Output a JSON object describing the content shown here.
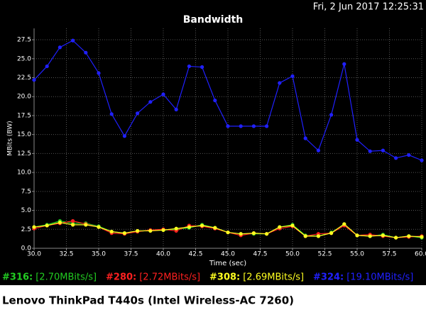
{
  "chart_data": {
    "type": "line",
    "title": "Bandwidth",
    "timestamp": "Fri, 2 Jun 2017 12:25:31",
    "xlabel": "Time (sec)",
    "ylabel": "MBits (BW)",
    "footer": "Lenovo ThinkPad T440s (Intel Wireless-AC 7260)",
    "x": [
      30,
      31,
      32,
      33,
      34,
      35,
      36,
      37,
      38,
      39,
      40,
      41,
      42,
      43,
      44,
      45,
      46,
      47,
      48,
      49,
      50,
      51,
      52,
      53,
      54,
      55,
      56,
      57,
      58,
      59,
      60
    ],
    "series": [
      {
        "name": "#324:",
        "summary": "[19.10MBits/s]",
        "color": "#2020ff",
        "values": [
          22.2,
          24.0,
          26.5,
          27.4,
          25.8,
          23.1,
          17.7,
          14.8,
          17.8,
          19.3,
          20.3,
          18.3,
          24.0,
          23.9,
          19.5,
          16.1,
          16.1,
          16.1,
          16.1,
          21.8,
          22.7,
          14.5,
          12.9,
          17.6,
          24.3,
          14.3,
          12.8,
          12.9,
          11.9,
          12.3,
          11.6
        ]
      },
      {
        "name": "#316:",
        "summary": "[2.70MBits/s]",
        "color": "#22cc22",
        "values": [
          2.8,
          3.1,
          3.6,
          3.3,
          3.3,
          2.9,
          2.2,
          2.0,
          2.2,
          2.4,
          2.4,
          2.5,
          2.7,
          3.1,
          2.7,
          2.1,
          1.9,
          1.9,
          1.9,
          2.8,
          3.1,
          1.7,
          1.6,
          2.1,
          3.1,
          1.7,
          1.6,
          1.8,
          1.4,
          1.6,
          1.4
        ]
      },
      {
        "name": "#280:",
        "summary": "[2.72MBits/s]",
        "color": "#ff2020",
        "values": [
          2.6,
          3.0,
          3.3,
          3.6,
          3.2,
          2.8,
          2.0,
          1.9,
          2.2,
          2.4,
          2.5,
          2.3,
          3.0,
          2.9,
          2.6,
          2.1,
          1.7,
          2.0,
          1.9,
          2.6,
          2.9,
          1.6,
          1.9,
          2.0,
          3.0,
          1.7,
          1.8,
          1.6,
          1.4,
          1.5,
          1.6
        ]
      },
      {
        "name": "#308:",
        "summary": "[2.69MBits/s]",
        "color": "#ffff20",
        "values": [
          2.8,
          3.0,
          3.4,
          3.1,
          3.1,
          2.8,
          2.2,
          2.0,
          2.3,
          2.3,
          2.4,
          2.6,
          2.8,
          3.0,
          2.7,
          2.1,
          1.9,
          2.0,
          1.9,
          2.8,
          3.0,
          1.6,
          1.6,
          2.0,
          3.2,
          1.7,
          1.6,
          1.7,
          1.4,
          1.6,
          1.5
        ]
      }
    ],
    "legend_order": [
      1,
      2,
      3,
      0
    ],
    "xlim": [
      30,
      60
    ],
    "ylim": [
      0,
      29
    ],
    "xticks": [
      {
        "value": 30,
        "label": "30.0"
      },
      32.5,
      {
        "value": 35,
        "label": "35.0"
      },
      37.5,
      {
        "value": 40,
        "label": "40.0"
      },
      42.5,
      {
        "value": 45,
        "label": "45.0"
      },
      47.5,
      {
        "value": 50,
        "label": "50.0"
      },
      52.5,
      {
        "value": 55,
        "label": "55.0"
      },
      57.5,
      {
        "value": 60,
        "label": "60.0"
      }
    ],
    "yticks": [
      {
        "value": 0,
        "label": "0.0"
      },
      2.5,
      {
        "value": 5,
        "label": "5.0"
      },
      7.5,
      {
        "value": 10,
        "label": "10.0"
      },
      12.5,
      {
        "value": 15,
        "label": "15.0"
      },
      17.5,
      {
        "value": 20,
        "label": "20.0"
      },
      22.5,
      {
        "value": 25,
        "label": "25.0"
      },
      27.5
    ],
    "grid": true
  }
}
